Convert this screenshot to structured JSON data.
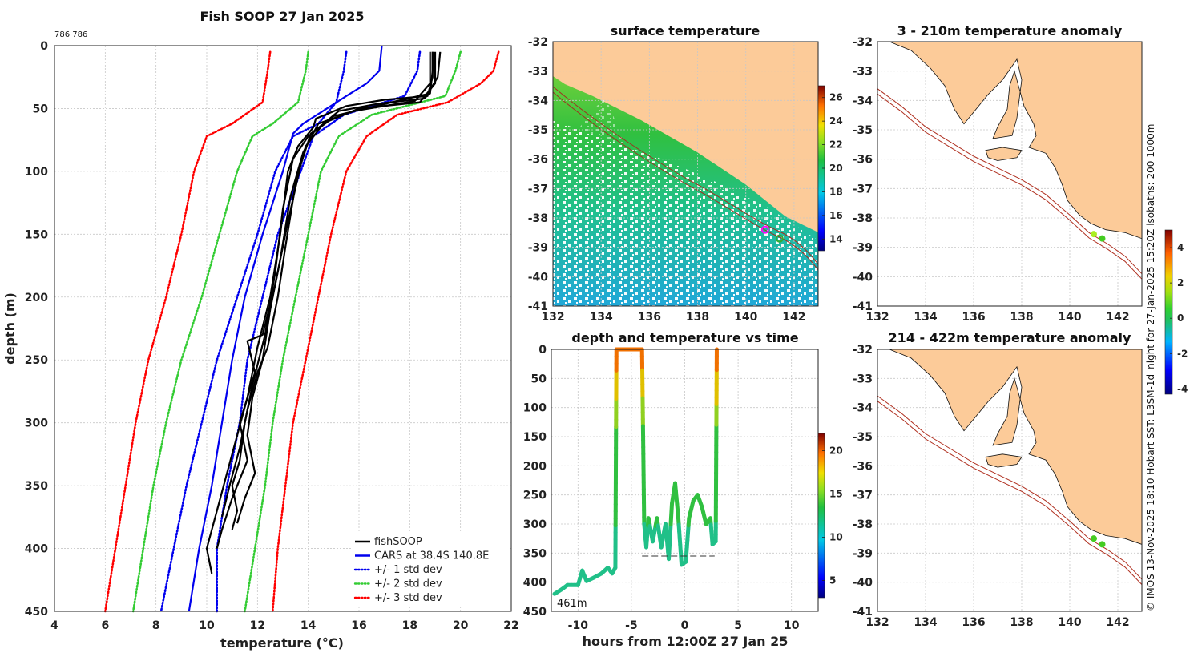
{
  "chart_data": [
    {
      "id": "profile",
      "type": "line",
      "title": "Fish SOOP 27 Jan 2025",
      "id_label": "786 786",
      "xlabel": "temperature (°C)",
      "ylabel": "depth (m)",
      "xlim": [
        4,
        22
      ],
      "ylim": [
        0,
        450
      ],
      "xticks": [
        4,
        6,
        8,
        10,
        12,
        14,
        16,
        18,
        20,
        22
      ],
      "yticks": [
        0,
        50,
        100,
        150,
        200,
        250,
        300,
        350,
        400,
        450
      ],
      "legend": [
        "fishSOOP",
        "CARS at 38.4S 140.8E",
        "+/- 1 std dev",
        "+/- 2 std dev",
        "+/- 3 std dev"
      ],
      "series": [
        {
          "name": "+/- 3 std dev (low)",
          "color": "#ff0000",
          "style": "dotted",
          "points": [
            [
              12.5,
              5
            ],
            [
              12.4,
              20
            ],
            [
              12.2,
              45
            ],
            [
              11.0,
              62
            ],
            [
              10.0,
              72
            ],
            [
              9.5,
              100
            ],
            [
              9.0,
              150
            ],
            [
              8.4,
              200
            ],
            [
              7.7,
              250
            ],
            [
              7.2,
              300
            ],
            [
              6.8,
              350
            ],
            [
              6.4,
              400
            ],
            [
              6.0,
              450
            ]
          ]
        },
        {
          "name": "+/- 2 std dev (low)",
          "color": "#33cc33",
          "style": "dotted",
          "points": [
            [
              14.0,
              5
            ],
            [
              13.9,
              20
            ],
            [
              13.6,
              45
            ],
            [
              12.6,
              62
            ],
            [
              11.8,
              72
            ],
            [
              11.2,
              100
            ],
            [
              10.5,
              150
            ],
            [
              9.8,
              200
            ],
            [
              9.0,
              250
            ],
            [
              8.4,
              300
            ],
            [
              7.9,
              350
            ],
            [
              7.5,
              400
            ],
            [
              7.1,
              450
            ]
          ]
        },
        {
          "name": "+/- 1 std dev (low)",
          "color": "#0000ee",
          "style": "dotted",
          "points": [
            [
              15.5,
              5
            ],
            [
              15.4,
              20
            ],
            [
              15.1,
              45
            ],
            [
              14.4,
              62
            ],
            [
              13.4,
              72
            ],
            [
              12.7,
              100
            ],
            [
              12.0,
              150
            ],
            [
              11.2,
              200
            ],
            [
              10.4,
              250
            ],
            [
              9.8,
              300
            ],
            [
              9.2,
              350
            ],
            [
              8.7,
              400
            ],
            [
              8.2,
              450
            ]
          ]
        },
        {
          "name": "CARS at 38.4S 140.8E",
          "color": "#0000ee",
          "style": "solid",
          "points": [
            [
              16.9,
              0
            ],
            [
              16.8,
              20
            ],
            [
              16.3,
              30
            ],
            [
              15.5,
              40
            ],
            [
              14.5,
              53
            ],
            [
              13.8,
              62
            ],
            [
              13.4,
              70
            ],
            [
              13.0,
              100
            ],
            [
              12.2,
              150
            ],
            [
              11.5,
              200
            ],
            [
              11.0,
              250
            ],
            [
              10.6,
              300
            ],
            [
              10.2,
              350
            ],
            [
              9.7,
              400
            ],
            [
              9.3,
              450
            ]
          ]
        },
        {
          "name": "+/- 1 std dev (high)",
          "color": "#0000ee",
          "style": "dotted",
          "points": [
            [
              18.4,
              5
            ],
            [
              18.3,
              20
            ],
            [
              17.8,
              40
            ],
            [
              15.4,
              55
            ],
            [
              14.2,
              72
            ],
            [
              13.7,
              100
            ],
            [
              12.8,
              150
            ],
            [
              12.2,
              200
            ],
            [
              11.6,
              250
            ],
            [
              11.3,
              300
            ],
            [
              10.8,
              350
            ],
            [
              10.4,
              400
            ],
            [
              10.4,
              450
            ]
          ]
        },
        {
          "name": "+/- 2 std dev (high)",
          "color": "#33cc33",
          "style": "dotted",
          "points": [
            [
              20.0,
              5
            ],
            [
              19.8,
              20
            ],
            [
              19.4,
              40
            ],
            [
              16.5,
              55
            ],
            [
              15.2,
              72
            ],
            [
              14.5,
              100
            ],
            [
              14.0,
              150
            ],
            [
              13.5,
              200
            ],
            [
              13.0,
              250
            ],
            [
              12.6,
              300
            ],
            [
              12.3,
              350
            ],
            [
              11.9,
              400
            ],
            [
              11.5,
              450
            ]
          ]
        },
        {
          "name": "+/- 3 std dev (high)",
          "color": "#ff0000",
          "style": "dotted",
          "points": [
            [
              21.5,
              5
            ],
            [
              21.3,
              20
            ],
            [
              20.8,
              30
            ],
            [
              19.5,
              45
            ],
            [
              17.5,
              55
            ],
            [
              16.3,
              72
            ],
            [
              15.5,
              100
            ],
            [
              14.9,
              150
            ],
            [
              14.4,
              200
            ],
            [
              13.9,
              250
            ],
            [
              13.4,
              300
            ],
            [
              13.1,
              350
            ],
            [
              12.8,
              400
            ],
            [
              12.6,
              450
            ]
          ]
        },
        {
          "name": "fishSOOP",
          "color": "#000000",
          "style": "solid",
          "points": [
            [
              18.9,
              5
            ],
            [
              18.9,
              25
            ],
            [
              18.7,
              40
            ],
            [
              17.0,
              43
            ],
            [
              15.5,
              48
            ],
            [
              14.3,
              58
            ],
            [
              14.2,
              65
            ],
            [
              13.6,
              80
            ],
            [
              13.2,
              100
            ],
            [
              12.9,
              150
            ],
            [
              12.5,
              200
            ],
            [
              12.0,
              240
            ],
            [
              11.6,
              280
            ],
            [
              11.2,
              310
            ],
            [
              10.8,
              340
            ],
            [
              10.4,
              370
            ],
            [
              10.0,
              400
            ],
            [
              10.2,
              420
            ]
          ]
        },
        {
          "name": "fishSOOP",
          "color": "#000000",
          "style": "solid",
          "points": [
            [
              19.0,
              5
            ],
            [
              19.0,
              30
            ],
            [
              18.4,
              45
            ],
            [
              16.0,
              50
            ],
            [
              14.8,
              60
            ],
            [
              14.0,
              72
            ],
            [
              13.4,
              90
            ],
            [
              13.0,
              130
            ],
            [
              12.7,
              180
            ],
            [
              12.3,
              230
            ],
            [
              11.8,
              270
            ],
            [
              11.5,
              300
            ],
            [
              11.3,
              330
            ],
            [
              11.0,
              350
            ],
            [
              11.2,
              370
            ],
            [
              11.0,
              385
            ]
          ]
        },
        {
          "name": "fishSOOP",
          "color": "#000000",
          "style": "solid",
          "points": [
            [
              19.2,
              5
            ],
            [
              19.1,
              25
            ],
            [
              18.6,
              42
            ],
            [
              16.8,
              46
            ],
            [
              15.2,
              52
            ],
            [
              14.6,
              62
            ],
            [
              13.9,
              80
            ],
            [
              13.5,
              110
            ],
            [
              13.1,
              160
            ],
            [
              12.8,
              200
            ],
            [
              12.4,
              240
            ],
            [
              12.0,
              260
            ],
            [
              11.6,
              290
            ],
            [
              11.3,
              320
            ],
            [
              10.9,
              350
            ],
            [
              10.6,
              375
            ]
          ]
        },
        {
          "name": "fishSOOP",
          "color": "#000000",
          "style": "solid",
          "points": [
            [
              18.8,
              5
            ],
            [
              18.8,
              30
            ],
            [
              18.2,
              44
            ],
            [
              15.8,
              52
            ],
            [
              14.4,
              62
            ],
            [
              13.8,
              85
            ],
            [
              13.3,
              120
            ],
            [
              12.9,
              170
            ],
            [
              12.5,
              210
            ],
            [
              12.2,
              250
            ],
            [
              11.8,
              280
            ],
            [
              11.6,
              310
            ],
            [
              11.9,
              340
            ],
            [
              11.5,
              360
            ],
            [
              11.2,
              380
            ]
          ]
        },
        {
          "name": "fishSOOP",
          "color": "#000000",
          "style": "solid",
          "points": [
            [
              18.9,
              5
            ],
            [
              18.9,
              20
            ],
            [
              18.8,
              38
            ],
            [
              17.5,
              44
            ],
            [
              15.0,
              56
            ],
            [
              14.1,
              70
            ],
            [
              13.7,
              95
            ],
            [
              13.2,
              140
            ],
            [
              12.7,
              190
            ],
            [
              12.2,
              230
            ],
            [
              11.6,
              235
            ],
            [
              11.9,
              260
            ],
            [
              11.3,
              300
            ],
            [
              11.6,
              330
            ],
            [
              11.0,
              360
            ],
            [
              10.6,
              385
            ],
            [
              10.4,
              400
            ]
          ]
        }
      ]
    },
    {
      "id": "surface_map",
      "type": "heatmap",
      "title": "surface temperature",
      "xlim": [
        132,
        143
      ],
      "ylim": [
        -41,
        -32
      ],
      "xticks": [
        132,
        134,
        136,
        138,
        140,
        142
      ],
      "yticks": [
        -32,
        -33,
        -34,
        -35,
        -36,
        -37,
        -38,
        -39,
        -40,
        -41
      ],
      "colorbar": {
        "min": 13,
        "max": 27,
        "ticks": [
          14,
          16,
          18,
          20,
          22,
          24,
          26
        ]
      },
      "markers": [
        {
          "lon": 140.8,
          "lat": -38.4,
          "color": "#ff00ff"
        },
        {
          "lon": 141.4,
          "lat": -38.7,
          "color": "#33aa33"
        }
      ]
    },
    {
      "id": "depth_time",
      "type": "scatter",
      "title": "depth and temperature vs time",
      "xlabel": "hours from 12:00Z 27 Jan 25",
      "xlim": [
        -12.5,
        12.5
      ],
      "ylim": [
        0,
        450
      ],
      "xticks": [
        -10,
        -5,
        0,
        5,
        10
      ],
      "yticks": [
        0,
        50,
        100,
        150,
        200,
        250,
        300,
        350,
        400,
        450
      ],
      "colorbar": {
        "min": 3,
        "max": 22,
        "ticks": [
          5,
          10,
          15,
          20
        ]
      },
      "bottom_label": "461m",
      "reference_line": {
        "depth": 355,
        "x_from": -4.0,
        "x_to": 2.8
      },
      "track": [
        [
          -12.2,
          420
        ],
        [
          -11.5,
          412
        ],
        [
          -11.0,
          405
        ],
        [
          -10.0,
          405
        ],
        [
          -9.6,
          380
        ],
        [
          -9.2,
          398
        ],
        [
          -8.5,
          392
        ],
        [
          -7.8,
          385
        ],
        [
          -7.2,
          375
        ],
        [
          -6.8,
          385
        ],
        [
          -6.5,
          375
        ],
        [
          -6.4,
          0
        ],
        [
          -6.2,
          0
        ],
        [
          -4.2,
          0
        ],
        [
          -4.0,
          0
        ],
        [
          -3.8,
          300
        ],
        [
          -3.6,
          340
        ],
        [
          -3.4,
          290
        ],
        [
          -3.0,
          330
        ],
        [
          -2.6,
          290
        ],
        [
          -2.2,
          340
        ],
        [
          -1.8,
          300
        ],
        [
          -1.5,
          360
        ],
        [
          -1.2,
          265
        ],
        [
          -0.9,
          230
        ],
        [
          -0.6,
          290
        ],
        [
          -0.3,
          370
        ],
        [
          0.1,
          365
        ],
        [
          0.4,
          290
        ],
        [
          0.8,
          260
        ],
        [
          1.2,
          250
        ],
        [
          1.6,
          270
        ],
        [
          2.0,
          300
        ],
        [
          2.4,
          290
        ],
        [
          2.6,
          335
        ],
        [
          2.9,
          330
        ],
        [
          3.0,
          0
        ]
      ]
    },
    {
      "id": "anom_shallow",
      "type": "heatmap",
      "title": "3 - 210m temperature anomaly",
      "xlim": [
        132,
        143
      ],
      "ylim": [
        -41,
        -32
      ],
      "xticks": [
        132,
        134,
        136,
        138,
        140,
        142
      ],
      "yticks": [
        -32,
        -33,
        -34,
        -35,
        -36,
        -37,
        -38,
        -39,
        -40,
        -41
      ],
      "colorbar": {
        "min": -4.3,
        "max": 5.0,
        "ticks": [
          -4,
          -2,
          0,
          2,
          4
        ]
      },
      "markers": [
        {
          "lon": 141.0,
          "lat": -38.55,
          "color": "#aaee22"
        },
        {
          "lon": 141.35,
          "lat": -38.7,
          "color": "#44cc22"
        }
      ]
    },
    {
      "id": "anom_deep",
      "type": "heatmap",
      "title": "214 - 422m temperature anomaly",
      "xlim": [
        132,
        143
      ],
      "ylim": [
        -41,
        -32
      ],
      "xticks": [
        132,
        134,
        136,
        138,
        140,
        142
      ],
      "yticks": [
        -32,
        -33,
        -34,
        -35,
        -36,
        -37,
        -38,
        -39,
        -40,
        -41
      ],
      "markers": [
        {
          "lon": 141.0,
          "lat": -38.5,
          "color": "#44cc22"
        },
        {
          "lon": 141.35,
          "lat": -38.7,
          "color": "#44cc22"
        }
      ]
    }
  ],
  "credit": "© IMOS 13-Nov-2025 18:10 Hobart SST: L3SM-1d_night for 27-Jan-2025 15:20Z isobaths: 200  1000m",
  "colors": {
    "land": "#fccb99",
    "isobath": "#b03020",
    "grid": "#c8c8c8"
  }
}
